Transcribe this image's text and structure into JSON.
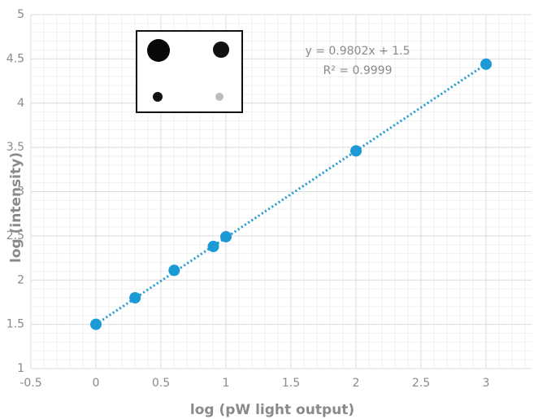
{
  "chart_data": {
    "type": "scatter",
    "x_label": "log (pW light output)",
    "y_label": "log (intensity)",
    "series": [
      {
        "color": "#1c9ad6",
        "x": [
          0,
          0.301,
          0.602,
          0.903,
          1,
          2,
          3
        ],
        "values": [
          1.5,
          1.8,
          2.11,
          2.38,
          2.49,
          3.46,
          4.44
        ]
      }
    ],
    "trendline": {
      "slope": 0.9802,
      "intercept": 1.5,
      "color": "#1c9ad6",
      "equation": "y = 0.9802x  + 1.5",
      "r_squared": "R² = 0.9999"
    },
    "xlim": [
      -0.5,
      3.35
    ],
    "ylim": [
      1,
      5
    ],
    "xticks": [
      -0.5,
      0,
      0.5,
      1,
      1.5,
      2,
      2.5,
      3
    ],
    "yticks": [
      1,
      1.5,
      2,
      2.5,
      3,
      3.5,
      4,
      4.5,
      5
    ],
    "grid": true
  }
}
